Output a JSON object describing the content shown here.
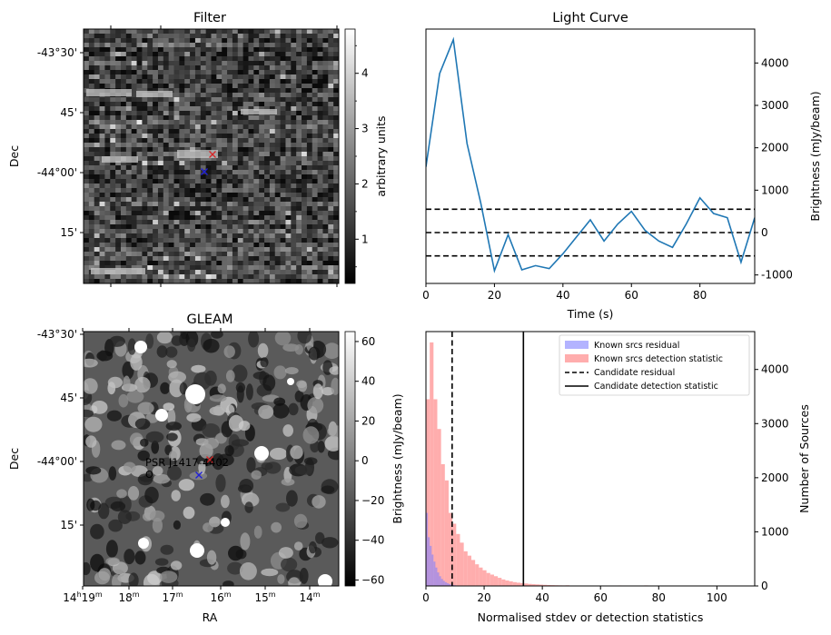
{
  "chart_data": [
    {
      "id": "filter",
      "type": "heatmap",
      "title": "Filter",
      "ylabel": "Dec",
      "y_ticks": [
        "-43°30'",
        "45'",
        "-44°00'",
        "15'"
      ],
      "colorbar": {
        "label": "arbitrary units",
        "range": [
          0.2,
          4.8
        ],
        "ticks": [
          "1",
          "2",
          "3",
          "4"
        ]
      },
      "markers": [
        {
          "label": "candidate",
          "color": "#d62728",
          "symbol": "x"
        },
        {
          "label": "known",
          "color": "#1f1fd8",
          "symbol": "x"
        }
      ]
    },
    {
      "id": "lightcurve",
      "type": "line",
      "title": "Light Curve",
      "xlabel": "Time (s)",
      "ylabel": "Brightness (mJy/beam)",
      "xlim": [
        0,
        96
      ],
      "ylim": [
        -1200,
        4800
      ],
      "x_ticks": [
        "0",
        "20",
        "40",
        "60",
        "80"
      ],
      "y_ticks": [
        "-1000",
        "0",
        "1000",
        "2000",
        "3000",
        "4000"
      ],
      "series": [
        {
          "color": "#1f77b4",
          "x": [
            0,
            4,
            8,
            12,
            16,
            20,
            24,
            28,
            32,
            36,
            40,
            44,
            48,
            52,
            56,
            60,
            64,
            68,
            72,
            76,
            80,
            84,
            88,
            92,
            96
          ],
          "y": [
            1550,
            3750,
            4550,
            2100,
            700,
            -900,
            -50,
            -880,
            -780,
            -850,
            -500,
            -100,
            300,
            -200,
            200,
            500,
            50,
            -200,
            -350,
            200,
            820,
            450,
            350,
            -700,
            350
          ]
        }
      ],
      "hlines": [
        {
          "y": -550,
          "style": "dashed"
        },
        {
          "y": 0,
          "style": "dashed"
        },
        {
          "y": 550,
          "style": "dashed"
        }
      ]
    },
    {
      "id": "gleam",
      "type": "heatmap",
      "title": "GLEAM",
      "xlabel": "RA",
      "ylabel": "Dec",
      "y_ticks": [
        "-43°30'",
        "45'",
        "-44°00'",
        "15'"
      ],
      "x_ticks": [
        {
          "pre": "14",
          "sup1": "h",
          "main": "19",
          "sup2": "m"
        },
        {
          "pre": "",
          "sup1": "",
          "main": "18",
          "sup2": "m"
        },
        {
          "pre": "",
          "sup1": "",
          "main": "17",
          "sup2": "m"
        },
        {
          "pre": "",
          "sup1": "",
          "main": "16",
          "sup2": "m"
        },
        {
          "pre": "",
          "sup1": "",
          "main": "15",
          "sup2": "m"
        },
        {
          "pre": "",
          "sup1": "",
          "main": "14",
          "sup2": "m"
        }
      ],
      "colorbar": {
        "label": "Brightness (mJy/beam)",
        "range": [
          -63,
          65
        ],
        "ticks": [
          "60",
          "40",
          "20",
          "0",
          "−20",
          "−40",
          "−60"
        ]
      },
      "annotation": {
        "text": "PSR J1417-4402",
        "color": "#008000"
      },
      "markers": [
        {
          "label": "candidate",
          "color": "#d62728",
          "symbol": "x"
        },
        {
          "label": "known",
          "color": "#1f1fd8",
          "symbol": "x"
        }
      ]
    },
    {
      "id": "histogram",
      "type": "bar",
      "xlabel": "Normalised stdev or detection statistics",
      "ylabel": "Number of Sources",
      "xlim": [
        0,
        113
      ],
      "ylim": [
        0,
        4700
      ],
      "x_ticks": [
        "0",
        "20",
        "40",
        "60",
        "80",
        "100"
      ],
      "y_ticks": [
        "0",
        "1000",
        "2000",
        "3000",
        "4000"
      ],
      "bin_width": 1.3,
      "series": [
        {
          "name": "Known srcs residual",
          "color": "#8080ff",
          "values": [
            1350,
            900,
            740,
            580,
            450,
            340,
            250,
            180,
            130,
            95,
            70,
            50,
            35,
            25,
            18,
            12,
            8,
            5,
            3,
            2
          ]
        },
        {
          "name": "Known srcs detection statistic",
          "color": "#ff9999",
          "values": [
            3450,
            4500,
            3450,
            2900,
            2250,
            1950,
            1350,
            1150,
            960,
            800,
            640,
            560,
            480,
            400,
            340,
            290,
            240,
            210,
            180,
            150,
            120,
            100,
            85,
            70,
            60,
            52,
            45,
            38,
            32,
            28,
            24,
            20,
            17,
            15,
            13,
            11,
            10,
            9,
            8,
            7,
            6,
            5,
            5,
            4,
            4
          ]
        }
      ],
      "vlines": [
        {
          "name": "Candidate residual",
          "x": 9.0,
          "style": "dashed"
        },
        {
          "name": "Candidate detection statistic",
          "x": 33.5,
          "style": "solid"
        }
      ]
    }
  ]
}
